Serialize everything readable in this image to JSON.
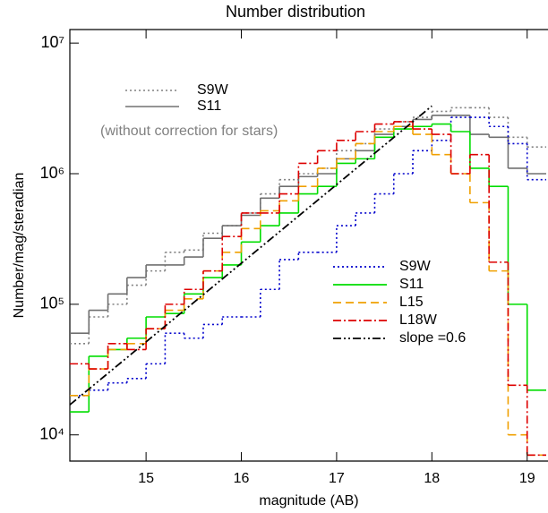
{
  "chart_data": {
    "type": "step-histogram",
    "title": "Number distribution",
    "xlabel": "magnitude (AB)",
    "ylabel": "Number/mag/steradian",
    "xlim": [
      14.2,
      19.2
    ],
    "xticks": [
      15,
      16,
      17,
      18,
      19
    ],
    "ylim": [
      6300,
      12700000
    ],
    "ylog": true,
    "yticks": [
      {
        "value": 10000,
        "label": "10⁴"
      },
      {
        "value": 100000,
        "label": "10⁵"
      },
      {
        "value": 1000000,
        "label": "10⁶"
      },
      {
        "value": 10000000,
        "label": "10⁷"
      }
    ],
    "bins": [
      14.2,
      14.4,
      14.6,
      14.8,
      15.0,
      15.2,
      15.4,
      15.6,
      15.8,
      16.0,
      16.2,
      16.4,
      16.6,
      16.8,
      17.0,
      17.2,
      17.4,
      17.6,
      17.8,
      18.0,
      18.2,
      18.4,
      18.6,
      18.8,
      19.0,
      19.2
    ],
    "comparison_series": [
      {
        "name": "S9W",
        "color": "#808080",
        "style": "dotted",
        "values": [
          50000,
          80000,
          100000,
          140000,
          180000,
          250000,
          260000,
          350000,
          400000,
          500000,
          700000,
          900000,
          1000000,
          1100000,
          1500000,
          1700000,
          2200000,
          2500000,
          2700000,
          3000000,
          3200000,
          3200000,
          2700000,
          1900000,
          1600000
        ]
      },
      {
        "name": "S11",
        "color": "#707070",
        "style": "solid",
        "values": [
          60000,
          90000,
          120000,
          160000,
          200000,
          200000,
          230000,
          320000,
          400000,
          480000,
          650000,
          800000,
          950000,
          1000000,
          1300000,
          1500000,
          2000000,
          2300000,
          2600000,
          2800000,
          2800000,
          2000000,
          1900000,
          1100000,
          1000000
        ]
      }
    ],
    "comparison_note": "(without correction for stars)",
    "series": [
      {
        "name": "S9W",
        "color": "#0000cc",
        "style": "dotted",
        "values": [
          20000,
          22000,
          25000,
          27000,
          35000,
          60000,
          55000,
          70000,
          80000,
          80000,
          130000,
          220000,
          250000,
          250000,
          400000,
          500000,
          700000,
          1000000,
          1500000,
          1800000,
          2700000,
          2700000,
          2300000,
          1700000,
          900000
        ]
      },
      {
        "name": "S11",
        "color": "#00dd00",
        "style": "solid",
        "values": [
          15000,
          40000,
          45000,
          55000,
          80000,
          85000,
          120000,
          160000,
          200000,
          300000,
          400000,
          500000,
          700000,
          800000,
          1200000,
          1300000,
          1900000,
          2200000,
          2300000,
          2400000,
          2100000,
          1100000,
          800000,
          100000,
          22000
        ]
      },
      {
        "name": "L15",
        "color": "#f0a000",
        "style": "dashed",
        "values": [
          20000,
          32000,
          45000,
          50000,
          65000,
          90000,
          110000,
          180000,
          250000,
          380000,
          520000,
          620000,
          800000,
          1100000,
          1300000,
          1700000,
          2100000,
          2300000,
          2000000,
          1400000,
          1000000,
          600000,
          180000,
          10000,
          7000
        ]
      },
      {
        "name": "L18W",
        "color": "#dd0000",
        "style": "dashdot",
        "values": [
          35000,
          32000,
          50000,
          45000,
          65000,
          100000,
          130000,
          180000,
          330000,
          500000,
          500000,
          700000,
          1200000,
          1500000,
          1800000,
          2100000,
          2400000,
          2500000,
          2200000,
          2000000,
          1000000,
          1400000,
          210000,
          24000,
          7000
        ]
      }
    ],
    "fit": {
      "name": "slope =0.6",
      "color": "#000000",
      "style": "dashdotdot",
      "x": [
        14.2,
        18.0
      ],
      "values": [
        17000,
        3300000
      ]
    }
  }
}
